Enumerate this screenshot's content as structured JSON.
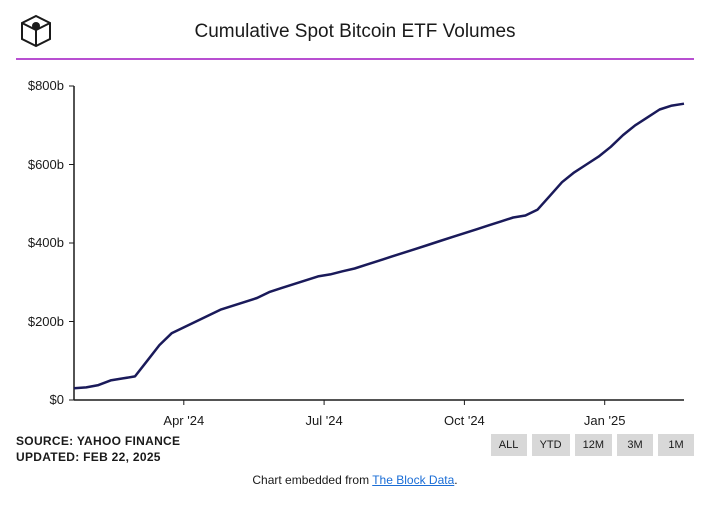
{
  "title": "Cumulative Spot Bitcoin ETF Volumes",
  "divider_color": "#b84fd1",
  "source_line1": "SOURCE: YAHOO FINANCE",
  "source_line2": "UPDATED: FEB 22, 2025",
  "embed_prefix": "Chart embedded from ",
  "embed_link_text": "The Block Data",
  "embed_suffix": ".",
  "chart": {
    "type": "line",
    "line_color": "#1a1a5a",
    "line_width": 2.5,
    "background_color": "#ffffff",
    "axis_color": "#1a1a1a",
    "tick_color": "#1a1a1a",
    "y_min": 0,
    "y_max": 800,
    "y_ticks": [
      0,
      200,
      400,
      600,
      800
    ],
    "y_tick_labels": [
      "$0",
      "$200b",
      "$400b",
      "$600b",
      "$800b"
    ],
    "x_ticks": [
      0.18,
      0.41,
      0.64,
      0.87
    ],
    "x_tick_labels": [
      "Apr '24",
      "Jul '24",
      "Oct '24",
      "Jan '25"
    ],
    "series": [
      {
        "t": 0.0,
        "v": 30
      },
      {
        "t": 0.02,
        "v": 32
      },
      {
        "t": 0.04,
        "v": 38
      },
      {
        "t": 0.06,
        "v": 50
      },
      {
        "t": 0.08,
        "v": 55
      },
      {
        "t": 0.1,
        "v": 60
      },
      {
        "t": 0.12,
        "v": 100
      },
      {
        "t": 0.14,
        "v": 140
      },
      {
        "t": 0.16,
        "v": 170
      },
      {
        "t": 0.18,
        "v": 185
      },
      {
        "t": 0.2,
        "v": 200
      },
      {
        "t": 0.22,
        "v": 215
      },
      {
        "t": 0.24,
        "v": 230
      },
      {
        "t": 0.26,
        "v": 240
      },
      {
        "t": 0.28,
        "v": 250
      },
      {
        "t": 0.3,
        "v": 260
      },
      {
        "t": 0.32,
        "v": 275
      },
      {
        "t": 0.34,
        "v": 285
      },
      {
        "t": 0.36,
        "v": 295
      },
      {
        "t": 0.38,
        "v": 305
      },
      {
        "t": 0.4,
        "v": 315
      },
      {
        "t": 0.42,
        "v": 320
      },
      {
        "t": 0.44,
        "v": 328
      },
      {
        "t": 0.46,
        "v": 335
      },
      {
        "t": 0.48,
        "v": 345
      },
      {
        "t": 0.5,
        "v": 355
      },
      {
        "t": 0.52,
        "v": 365
      },
      {
        "t": 0.54,
        "v": 375
      },
      {
        "t": 0.56,
        "v": 385
      },
      {
        "t": 0.58,
        "v": 395
      },
      {
        "t": 0.6,
        "v": 405
      },
      {
        "t": 0.62,
        "v": 415
      },
      {
        "t": 0.64,
        "v": 425
      },
      {
        "t": 0.66,
        "v": 435
      },
      {
        "t": 0.68,
        "v": 445
      },
      {
        "t": 0.7,
        "v": 455
      },
      {
        "t": 0.72,
        "v": 465
      },
      {
        "t": 0.74,
        "v": 470
      },
      {
        "t": 0.76,
        "v": 485
      },
      {
        "t": 0.78,
        "v": 520
      },
      {
        "t": 0.8,
        "v": 555
      },
      {
        "t": 0.82,
        "v": 580
      },
      {
        "t": 0.84,
        "v": 600
      },
      {
        "t": 0.86,
        "v": 620
      },
      {
        "t": 0.88,
        "v": 645
      },
      {
        "t": 0.9,
        "v": 675
      },
      {
        "t": 0.92,
        "v": 700
      },
      {
        "t": 0.94,
        "v": 720
      },
      {
        "t": 0.96,
        "v": 740
      },
      {
        "t": 0.98,
        "v": 750
      },
      {
        "t": 1.0,
        "v": 755
      }
    ]
  },
  "range_buttons": [
    "ALL",
    "YTD",
    "12M",
    "3M",
    "1M"
  ]
}
